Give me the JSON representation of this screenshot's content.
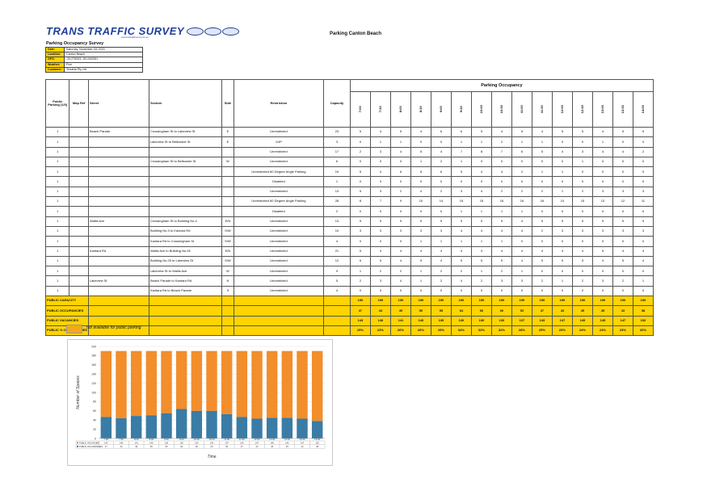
{
  "header": {
    "logo_text": "TRANS TRAFFIC SURVEY",
    "logo_subtext": "www.transtrafficsurvey.com.au",
    "page_title": "Parking Canton Beach",
    "survey_title": "Parking Occupancy Survey"
  },
  "info": [
    {
      "label": "Date:",
      "value": "Saturday, November 18, 2023"
    },
    {
      "label": "Location:",
      "value": "Canton Beach"
    },
    {
      "label": "GPS:",
      "value": "-33.275003, 151.543261"
    },
    {
      "label": "Weather:",
      "value": "Fine"
    },
    {
      "label": "Customer:",
      "value": "TerraNa Pty Ltd"
    }
  ],
  "table": {
    "col_public_parking": "Public Parking (1/0)",
    "col_map_ref": "Map Ref",
    "col_street": "Street",
    "col_section": "Section",
    "col_side": "Side",
    "col_restriction": "Restriction",
    "col_capacity": "Capacity",
    "group_header": "Parking Occupancy",
    "times": [
      "7:00",
      "7:30",
      "8:00",
      "8:30",
      "9:00",
      "9:30",
      "10:00",
      "10:30",
      "11:00",
      "11:30",
      "12:00",
      "12:30",
      "13:00",
      "13:30",
      "14:00"
    ],
    "rows": [
      {
        "pp": "1",
        "map": "",
        "street": "Beach Parade",
        "section": "Crossingham St to Lakeview St",
        "side": "E",
        "restriction": "Unrestricted",
        "capacity": "23",
        "occ": [
          "5",
          "4",
          "5",
          "4",
          "6",
          "6",
          "5",
          "4",
          "5",
          "4",
          "5",
          "5",
          "4",
          "5",
          "5"
        ]
      },
      {
        "pp": "1",
        "map": "",
        "street": "",
        "section": "Lakeview St to Belbowrie St",
        "side": "E",
        "restriction": "1/4P",
        "capacity": "3",
        "occ": [
          "0",
          "1",
          "1",
          "0",
          "0",
          "1",
          "1",
          "2",
          "1",
          "1",
          "0",
          "0",
          "1",
          "0",
          "0"
        ]
      },
      {
        "pp": "1",
        "map": "",
        "street": "",
        "section": "",
        "side": "",
        "restriction": "Unrestricted",
        "capacity": "17",
        "occ": [
          "2",
          "3",
          "4",
          "5",
          "4",
          "7",
          "8",
          "7",
          "6",
          "5",
          "4",
          "3",
          "4",
          "4",
          "2"
        ]
      },
      {
        "pp": "1",
        "map": "",
        "street": "",
        "section": "Crossingham St to Belbowrie St",
        "side": "W",
        "restriction": "Unrestricted",
        "capacity": "6",
        "occ": [
          "0",
          "0",
          "0",
          "1",
          "2",
          "1",
          "0",
          "0",
          "0",
          "0",
          "0",
          "1",
          "0",
          "0",
          "0"
        ]
      },
      {
        "pp": "1",
        "map": "",
        "street": "",
        "section": "",
        "side": "",
        "restriction": "Unrestricted 60 Degree Angle Parking",
        "capacity": "19",
        "occ": [
          "5",
          "4",
          "6",
          "6",
          "6",
          "5",
          "4",
          "4",
          "2",
          "1",
          "1",
          "0",
          "0",
          "0",
          "0"
        ]
      },
      {
        "pp": "1",
        "map": "",
        "street": "",
        "section": "",
        "side": "",
        "restriction": "Disabled",
        "capacity": "1",
        "occ": [
          "0",
          "0",
          "0",
          "0",
          "0",
          "0",
          "0",
          "0",
          "0",
          "0",
          "0",
          "0",
          "0",
          "0",
          "0"
        ]
      },
      {
        "pp": "1",
        "map": "",
        "street": "",
        "section": "",
        "side": "",
        "restriction": "Unrestricted",
        "capacity": "13",
        "occ": [
          "5",
          "3",
          "2",
          "4",
          "2",
          "3",
          "4",
          "2",
          "2",
          "2",
          "1",
          "2",
          "3",
          "3",
          "3"
        ]
      },
      {
        "pp": "1",
        "map": "",
        "street": "",
        "section": "",
        "side": "",
        "restriction": "Unrestricted 60 Degree Angle Parking",
        "capacity": "28",
        "occ": [
          "8",
          "7",
          "9",
          "10",
          "14",
          "15",
          "15",
          "16",
          "16",
          "16",
          "14",
          "15",
          "13",
          "12",
          "11"
        ]
      },
      {
        "pp": "1",
        "map": "",
        "street": "",
        "section": "",
        "side": "",
        "restriction": "Disabled",
        "capacity": "2",
        "occ": [
          "0",
          "0",
          "0",
          "0",
          "0",
          "1",
          "1",
          "1",
          "1",
          "0",
          "0",
          "0",
          "0",
          "0",
          "0"
        ]
      },
      {
        "pp": "1",
        "map": "",
        "street": "Wallis Ave",
        "section": "Crossingham St to Building No.4",
        "side": "E/N",
        "restriction": "Unrestricted",
        "capacity": "13",
        "occ": [
          "5",
          "5",
          "5",
          "5",
          "5",
          "5",
          "5",
          "5",
          "4",
          "5",
          "5",
          "5",
          "5",
          "5",
          "5"
        ]
      },
      {
        "pp": "1",
        "map": "",
        "street": "",
        "section": "Building No.3 to Kantara Rd",
        "side": "S/W",
        "restriction": "Unrestricted",
        "capacity": "10",
        "occ": [
          "3",
          "3",
          "3",
          "3",
          "3",
          "4",
          "4",
          "4",
          "4",
          "2",
          "3",
          "3",
          "3",
          "3",
          "3"
        ]
      },
      {
        "pp": "1",
        "map": "",
        "street": "",
        "section": "Kantara Rd to Crossingham St",
        "side": "S/W",
        "restriction": "Unrestricted",
        "capacity": "4",
        "occ": [
          "0",
          "0",
          "0",
          "1",
          "1",
          "1",
          "1",
          "1",
          "0",
          "0",
          "0",
          "0",
          "0",
          "0",
          "0"
        ]
      },
      {
        "pp": "1",
        "map": "",
        "street": "Kantara Rd",
        "section": "Wallis Ave to Building No.26",
        "side": "E/N",
        "restriction": "Unrestricted",
        "capacity": "21",
        "occ": [
          "5",
          "4",
          "4",
          "4",
          "4",
          "4",
          "4",
          "4",
          "4",
          "4",
          "4",
          "4",
          "5",
          "4",
          "4"
        ]
      },
      {
        "pp": "1",
        "map": "",
        "street": "",
        "section": "Building No.25 to Lakeview St",
        "side": "S/W",
        "restriction": "Unrestricted",
        "capacity": "12",
        "occ": [
          "6",
          "5",
          "4",
          "5",
          "4",
          "5",
          "5",
          "5",
          "4",
          "5",
          "5",
          "5",
          "4",
          "5",
          "4"
        ]
      },
      {
        "pp": "1",
        "map": "",
        "street": "",
        "section": "Lakeview St to Wallis Ave",
        "side": "W",
        "restriction": "Unrestricted",
        "capacity": "9",
        "occ": [
          "1",
          "2",
          "2",
          "1",
          "2",
          "2",
          "1",
          "2",
          "1",
          "0",
          "0",
          "0",
          "0",
          "0",
          "0"
        ]
      },
      {
        "pp": "1",
        "map": "",
        "street": "Lakeview St",
        "section": "Beach Parade to Kantara Rd",
        "side": "N",
        "restriction": "Unrestricted",
        "capacity": "5",
        "occ": [
          "2",
          "3",
          "4",
          "1",
          "2",
          "4",
          "2",
          "3",
          "3",
          "2",
          "1",
          "2",
          "3",
          "2",
          "1"
        ]
      },
      {
        "pp": "1",
        "map": "",
        "street": "",
        "section": "Kantara Rd to Beach Parade",
        "side": "S",
        "restriction": "Unrestricted",
        "capacity": "4",
        "occ": [
          "0",
          "0",
          "0",
          "0",
          "0",
          "0",
          "0",
          "0",
          "0",
          "0",
          "0",
          "0",
          "0",
          "0",
          "0"
        ]
      }
    ],
    "summary": [
      {
        "label": "PUBLIC CAPACITY",
        "values": [
          "190",
          "190",
          "190",
          "190",
          "190",
          "190",
          "190",
          "190",
          "190",
          "190",
          "190",
          "190",
          "190",
          "190",
          "190"
        ]
      },
      {
        "label": "PUBLIC OCCUPANCIES",
        "values": [
          "47",
          "44",
          "49",
          "50",
          "55",
          "64",
          "60",
          "60",
          "53",
          "47",
          "43",
          "45",
          "45",
          "43",
          "38"
        ]
      },
      {
        "label": "PUBLIC VACANCIES",
        "values": [
          "143",
          "146",
          "141",
          "140",
          "135",
          "126",
          "130",
          "130",
          "137",
          "143",
          "147",
          "145",
          "145",
          "147",
          "152"
        ]
      },
      {
        "label": "PUBLIC % OCCUPANCIES",
        "values": [
          "25%",
          "23%",
          "26%",
          "26%",
          "29%",
          "34%",
          "32%",
          "32%",
          "28%",
          "25%",
          "23%",
          "24%",
          "24%",
          "23%",
          "20%"
        ]
      }
    ]
  },
  "legend": {
    "text": "not available for public parking",
    "color": "#F4A81C"
  },
  "chart_data": {
    "type": "bar",
    "stacked": true,
    "categories": [
      "7:00",
      "7:30",
      "8:00",
      "8:30",
      "9:00",
      "9:30",
      "10:00",
      "10:30",
      "11:00",
      "11:30",
      "12:00",
      "12:30",
      "13:00",
      "13:30",
      "14:00"
    ],
    "series": [
      {
        "name": "PUBLIC OCCUPANCIES",
        "color": "#3A7CA5",
        "values": [
          47,
          44,
          49,
          50,
          55,
          64,
          60,
          60,
          53,
          47,
          43,
          45,
          45,
          43,
          38
        ]
      },
      {
        "name": "PUBLIC VACANCIES",
        "color": "#F28E2B",
        "values": [
          143,
          146,
          141,
          140,
          135,
          126,
          130,
          130,
          137,
          143,
          147,
          145,
          145,
          147,
          152
        ]
      }
    ],
    "xlabel": "Time",
    "ylabel": "Number of Spaces",
    "ylim": [
      0,
      200
    ],
    "yticks": [
      0,
      20,
      40,
      60,
      80,
      100,
      120,
      140,
      160,
      180,
      200
    ],
    "grid": true,
    "data_table": true
  }
}
